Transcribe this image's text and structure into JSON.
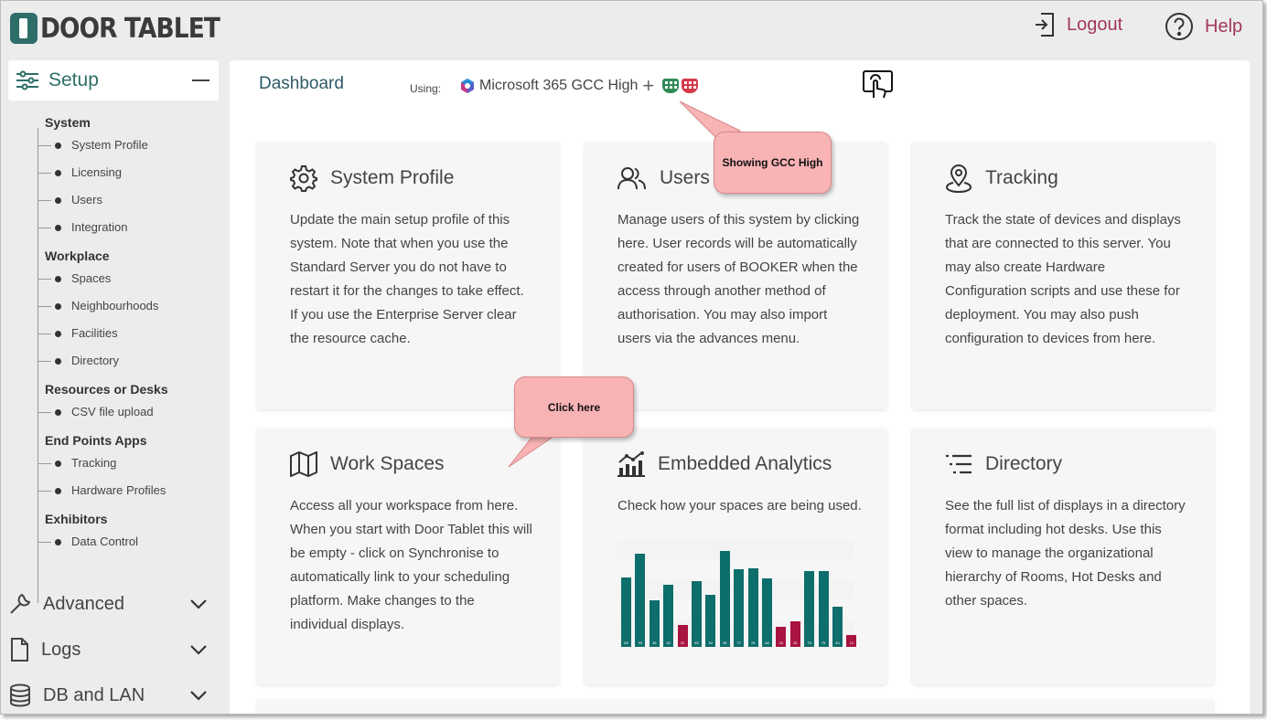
{
  "header": {
    "logo_text": "DOOR TABLET",
    "logout_label": "Logout",
    "help_label": "Help"
  },
  "sidebar": {
    "setup_label": "Setup",
    "groups": [
      {
        "label": "System",
        "items": [
          "System Profile",
          "Licensing",
          "Users",
          "Integration"
        ]
      },
      {
        "label": "Workplace",
        "items": [
          "Spaces",
          "Neighbourhoods",
          "Facilities",
          "Directory"
        ]
      },
      {
        "label": "Resources or Desks",
        "items": [
          "CSV file upload"
        ]
      },
      {
        "label": "End Points Apps",
        "items": [
          "Tracking",
          "Hardware Profiles"
        ]
      },
      {
        "label": "Exhibitors",
        "items": [
          "Data Control"
        ]
      }
    ],
    "sections": [
      "Advanced",
      "Logs",
      "DB and LAN"
    ]
  },
  "main": {
    "title": "Dashboard",
    "using_label": "Using:",
    "platform_label": "Microsoft 365 GCC High",
    "plus_label": "+"
  },
  "cards": [
    {
      "title": "System Profile",
      "icon": "gear-icon",
      "body": "Update the main setup profile of this system. Note that when you use the Standard Server you do not have to restart it for the changes to take effect. If you use the Enterprise Server clear the resource cache."
    },
    {
      "title": "Users",
      "icon": "users-icon",
      "body": "Manage users of this system by clicking here. User records will be automatically created for users of BOOKER when the access through another method of authorisation. You may also import users via the advances menu."
    },
    {
      "title": "Tracking",
      "icon": "location-pin-icon",
      "body": "Track the state of devices and displays that are connected to this server. You may also create Hardware Configuration scripts and use these for deployment. You may also push configuration to devices from here."
    },
    {
      "title": "Work Spaces",
      "icon": "map-icon",
      "body": "Access all your workspace from here. When you start with Door Tablet this will be empty - click on Synchronise to automatically link to your scheduling platform. Make changes to the individual displays."
    },
    {
      "title": "Embedded Analytics",
      "icon": "analytics-icon",
      "body": "Check how your spaces are being used."
    },
    {
      "title": "Directory",
      "icon": "list-icon",
      "body": "See the full list of displays in a directory format including hot desks. Use this view to manage the organizational hierarchy of Rooms, Hot Desks and other spaces."
    }
  ],
  "callouts": {
    "gcc": "Showing GCC High",
    "click": "Click here"
  },
  "colors": {
    "accent": "#2e6e68",
    "link": "#a1385d",
    "bar_teal": "#0e6e6b",
    "bar_red": "#a8133f",
    "callout": "#f8b3b5"
  },
  "chart_data": {
    "type": "bar",
    "values": [
      69,
      93,
      46,
      62,
      22,
      65,
      52,
      95,
      77,
      78,
      68,
      20,
      25,
      75,
      75,
      40,
      12
    ],
    "highlight": [
      false,
      false,
      false,
      false,
      true,
      false,
      false,
      false,
      false,
      false,
      false,
      true,
      true,
      false,
      false,
      false,
      true
    ],
    "ylim": [
      0,
      100
    ]
  }
}
